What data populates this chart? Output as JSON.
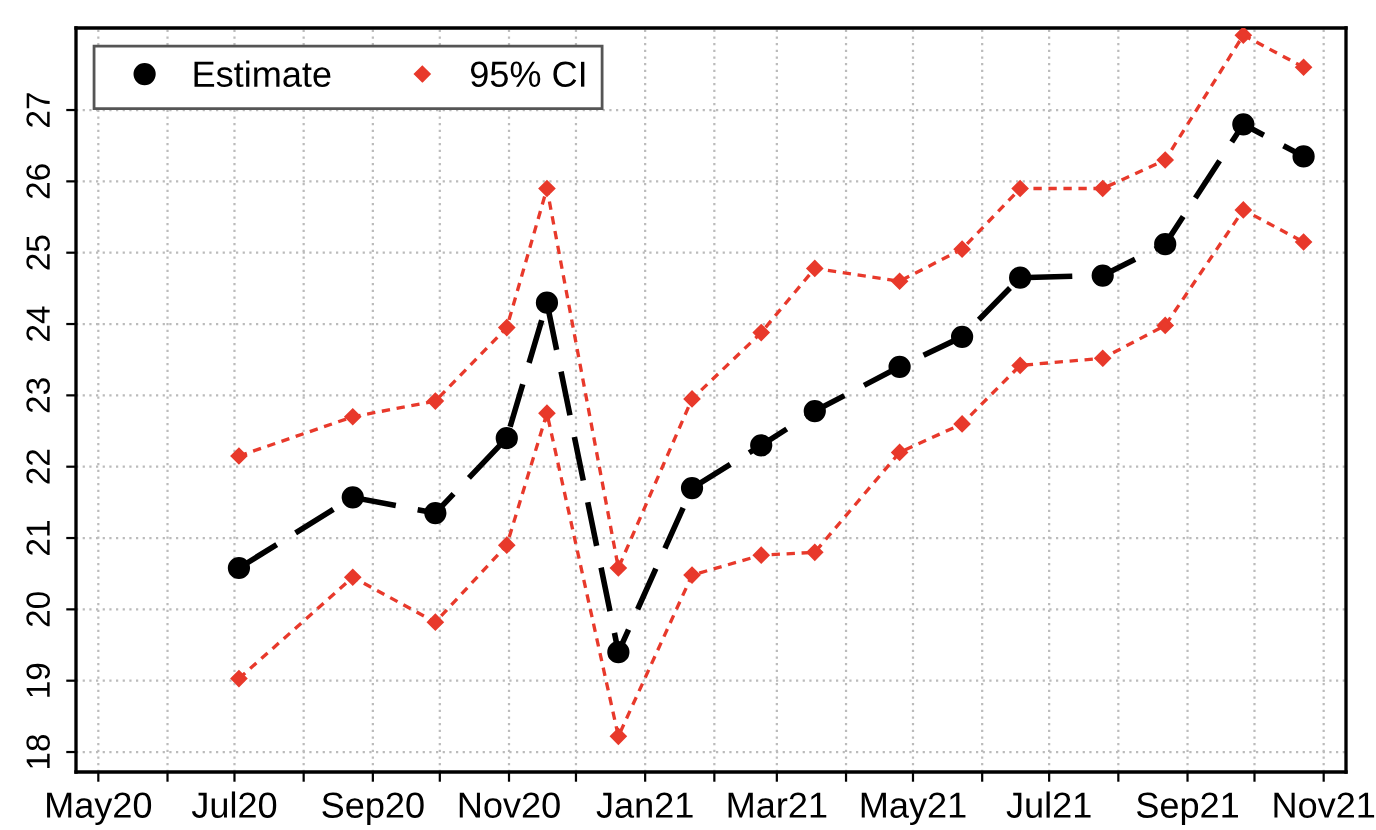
{
  "chart_data": {
    "type": "line",
    "x": [
      "2020-07-03",
      "2020-08-23",
      "2020-09-29",
      "2020-10-31",
      "2020-11-18",
      "2020-12-20",
      "2021-01-22",
      "2021-02-22",
      "2021-03-18",
      "2021-04-25",
      "2021-05-23",
      "2021-06-18",
      "2021-07-25",
      "2021-08-22",
      "2021-09-26",
      "2021-10-23"
    ],
    "series": [
      {
        "name": "Estimate",
        "color": "#000000",
        "marker": "circle",
        "line_style": "dashed",
        "values": [
          20.58,
          21.57,
          21.35,
          22.4,
          24.3,
          19.4,
          21.7,
          22.3,
          22.78,
          23.4,
          23.82,
          24.65,
          24.68,
          25.12,
          26.8,
          26.35
        ]
      },
      {
        "name": "95% CI",
        "color": "#e8392b",
        "marker": "diamond",
        "line_style": "dotted",
        "values": [
          22.15,
          22.7,
          22.92,
          23.95,
          25.9,
          20.58,
          22.95,
          23.88,
          24.78,
          24.6,
          25.05,
          25.9,
          25.9,
          26.3,
          28.05,
          27.6
        ]
      },
      {
        "color": "#e8392b",
        "marker": "diamond",
        "line_style": "dotted",
        "values": [
          19.03,
          20.45,
          19.82,
          20.9,
          22.75,
          18.22,
          20.48,
          20.76,
          20.8,
          22.2,
          22.6,
          23.42,
          23.52,
          23.98,
          25.6,
          25.15
        ]
      }
    ],
    "xlim": [
      "2020-04-21",
      "2021-11-11"
    ],
    "xticks": [
      {
        "value": "2020-05-01",
        "label": "May20"
      },
      {
        "value": "2020-06-01",
        "label": null
      },
      {
        "value": "2020-07-01",
        "label": "Jul20"
      },
      {
        "value": "2020-08-01",
        "label": null
      },
      {
        "value": "2020-09-01",
        "label": "Sep20"
      },
      {
        "value": "2020-10-01",
        "label": null
      },
      {
        "value": "2020-11-01",
        "label": "Nov20"
      },
      {
        "value": "2020-12-01",
        "label": null
      },
      {
        "value": "2021-01-01",
        "label": "Jan21"
      },
      {
        "value": "2021-02-01",
        "label": null
      },
      {
        "value": "2021-03-01",
        "label": "Mar21"
      },
      {
        "value": "2021-04-01",
        "label": null
      },
      {
        "value": "2021-05-01",
        "label": "May21"
      },
      {
        "value": "2021-06-01",
        "label": null
      },
      {
        "value": "2021-07-01",
        "label": "Jul21"
      },
      {
        "value": "2021-08-01",
        "label": null
      },
      {
        "value": "2021-09-01",
        "label": "Sep21"
      },
      {
        "value": "2021-10-01",
        "label": null
      },
      {
        "value": "2021-11-01",
        "label": "Nov21"
      }
    ],
    "ylim": [
      17.72,
      28.15
    ],
    "yticks": [
      18,
      19,
      20,
      21,
      22,
      23,
      24,
      25,
      26,
      27
    ],
    "grid": true,
    "legend": "top left"
  }
}
